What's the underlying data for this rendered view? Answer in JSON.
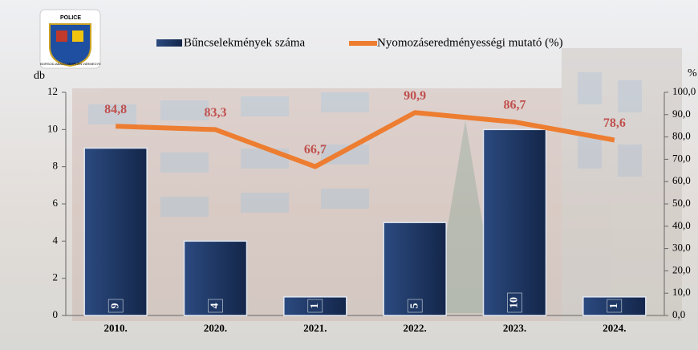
{
  "logo": {
    "top": "POLICE",
    "ring": "BORSOD-ABAÚJ-ZEMPLÉN VÁRMEGYE"
  },
  "chart_data": {
    "type": "bar-line",
    "categories": [
      "2010.",
      "2020.",
      "2021.",
      "2022.",
      "2023.",
      "2024."
    ],
    "series": [
      {
        "name": "Bűncselekmények száma",
        "type": "bar",
        "color": "#1f3864",
        "values": [
          9,
          4,
          1,
          5,
          10,
          1
        ]
      },
      {
        "name": "Nyomozáseredményességi mutató (%)",
        "type": "line",
        "axis": "y2",
        "color": "#ed7d31",
        "values": [
          84.8,
          83.3,
          66.7,
          90.9,
          86.7,
          78.6
        ],
        "value_labels": [
          "84,8",
          "83,3",
          "66,7",
          "90,9",
          "86,7",
          "78,6"
        ]
      }
    ],
    "ylabel": "db",
    "y2label": "%",
    "ylim": [
      0,
      12
    ],
    "yticks": [
      0,
      2,
      4,
      6,
      8,
      10,
      12
    ],
    "y2lim": [
      0,
      100
    ],
    "y2ticks": [
      {
        "value": 0,
        "label": "0,0"
      },
      {
        "value": 10,
        "label": "10,0"
      },
      {
        "value": 20,
        "label": "20,0"
      },
      {
        "value": 30,
        "label": "30,0"
      },
      {
        "value": 40,
        "label": "40,0"
      },
      {
        "value": 50,
        "label": "50,0"
      },
      {
        "value": 60,
        "label": "60,0"
      },
      {
        "value": 70,
        "label": "70,0"
      },
      {
        "value": 80,
        "label": "80,0"
      },
      {
        "value": 90,
        "label": "90,0"
      },
      {
        "value": 100,
        "label": "100,0"
      }
    ],
    "legend": "top"
  }
}
